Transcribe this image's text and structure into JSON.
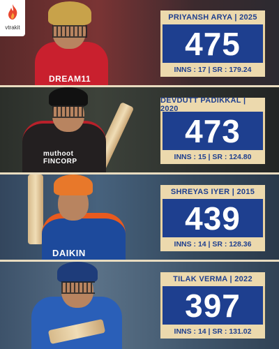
{
  "brand": {
    "name": "vtrakit",
    "accent": "#e8462e"
  },
  "colors": {
    "box_bg": "#1e3f8f",
    "bar_bg": "#ecd9ad",
    "bar_text": "#1e3f8f"
  },
  "players": [
    {
      "title": "PRIYANSH ARYA | 2025",
      "runs": "475",
      "stats": "INNS : 17 | SR : 179.24",
      "jersey_text": "DREAM11"
    },
    {
      "title": "DEVDUTT PADIKKAL | 2020",
      "runs": "473",
      "stats": "INNS : 15 | SR : 124.80",
      "jersey_text": "muthoot FINCORP"
    },
    {
      "title": "SHREYAS IYER | 2015",
      "runs": "439",
      "stats": "INNS : 14 | SR : 128.36",
      "jersey_text": "DAIKIN"
    },
    {
      "title": "TILAK VERMA | 2022",
      "runs": "397",
      "stats": "INNS : 14 | SR : 131.02",
      "jersey_text": ""
    }
  ]
}
